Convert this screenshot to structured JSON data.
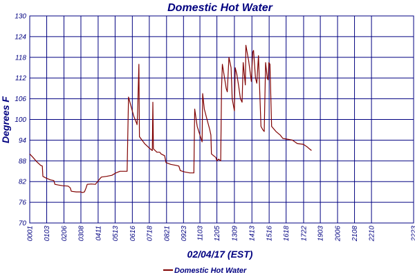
{
  "chart_data": {
    "type": "line",
    "title": "Domestic Hot Water",
    "xlabel": "02/04/17 (EST)",
    "ylabel": "Degrees F",
    "ylim": [
      70,
      130
    ],
    "yticks": [
      70,
      76,
      82,
      88,
      94,
      100,
      106,
      112,
      118,
      124,
      130
    ],
    "xlim": [
      0,
      1403
    ],
    "xticks": [
      {
        "label": "0001",
        "t": 0
      },
      {
        "label": "0103",
        "t": 62
      },
      {
        "label": "0206",
        "t": 125
      },
      {
        "label": "0308",
        "t": 187
      },
      {
        "label": "0411",
        "t": 250
      },
      {
        "label": "0513",
        "t": 312
      },
      {
        "label": "0616",
        "t": 375
      },
      {
        "label": "0718",
        "t": 437
      },
      {
        "label": "0821",
        "t": 500
      },
      {
        "label": "0923",
        "t": 562
      },
      {
        "label": "1103",
        "t": 622
      },
      {
        "label": "1205",
        "t": 684
      },
      {
        "label": "1309",
        "t": 748
      },
      {
        "label": "1413",
        "t": 812
      },
      {
        "label": "1516",
        "t": 875
      },
      {
        "label": "1618",
        "t": 937
      },
      {
        "label": "1722",
        "t": 1001
      },
      {
        "label": "1903",
        "t": 1062
      },
      {
        "label": "2006",
        "t": 1125
      },
      {
        "label": "2108",
        "t": 1187
      },
      {
        "label": "2210",
        "t": 1249
      },
      {
        "label": "2223",
        "t": 1403
      }
    ],
    "grid": true,
    "legend_position": "bottom-left",
    "series": [
      {
        "name": "Domestic Hot Water",
        "color": "#800000",
        "points": [
          [
            0,
            90
          ],
          [
            12,
            89
          ],
          [
            25,
            87.8
          ],
          [
            40,
            86.7
          ],
          [
            46,
            86.5
          ],
          [
            48,
            83.5
          ],
          [
            60,
            83
          ],
          [
            75,
            82.5
          ],
          [
            88,
            82.3
          ],
          [
            92,
            81.2
          ],
          [
            105,
            81
          ],
          [
            120,
            80.8
          ],
          [
            140,
            80.7
          ],
          [
            148,
            80.2
          ],
          [
            152,
            79.2
          ],
          [
            170,
            79
          ],
          [
            186,
            79
          ],
          [
            193,
            78.8
          ],
          [
            200,
            79
          ],
          [
            206,
            80.2
          ],
          [
            210,
            81.2
          ],
          [
            225,
            81.3
          ],
          [
            240,
            81.2
          ],
          [
            250,
            82.2
          ],
          [
            256,
            82.8
          ],
          [
            262,
            83.3
          ],
          [
            280,
            83.5
          ],
          [
            300,
            83.8
          ],
          [
            315,
            84.5
          ],
          [
            330,
            85
          ],
          [
            345,
            85
          ],
          [
            356,
            85
          ],
          [
            361,
            106.5
          ],
          [
            380,
            101
          ],
          [
            390,
            99
          ],
          [
            392,
            98.5
          ],
          [
            394,
            101.5
          ],
          [
            399,
            116
          ],
          [
            401,
            95
          ],
          [
            420,
            93
          ],
          [
            440,
            91.5
          ],
          [
            448,
            91
          ],
          [
            450,
            105
          ],
          [
            452,
            91.5
          ],
          [
            465,
            90.5
          ],
          [
            475,
            90.5
          ],
          [
            480,
            90
          ],
          [
            493,
            89.5
          ],
          [
            498,
            87.5
          ],
          [
            515,
            87
          ],
          [
            535,
            86.7
          ],
          [
            545,
            86.5
          ],
          [
            550,
            85.2
          ],
          [
            565,
            84.8
          ],
          [
            585,
            84.5
          ],
          [
            600,
            84.5
          ],
          [
            603,
            103
          ],
          [
            612,
            98
          ],
          [
            624,
            95
          ],
          [
            630,
            93.5
          ],
          [
            632,
            107.5
          ],
          [
            638,
            103
          ],
          [
            648,
            100
          ],
          [
            658,
            97
          ],
          [
            662,
            95.5
          ],
          [
            664,
            90
          ],
          [
            672,
            89.5
          ],
          [
            680,
            89
          ],
          [
            684,
            88
          ],
          [
            690,
            88.5
          ],
          [
            698,
            88
          ],
          [
            701,
            109
          ],
          [
            704,
            116
          ],
          [
            710,
            113
          ],
          [
            718,
            109
          ],
          [
            722,
            108
          ],
          [
            728,
            118
          ],
          [
            736,
            115
          ],
          [
            740,
            106
          ],
          [
            748,
            102.5
          ],
          [
            751,
            115
          ],
          [
            757,
            113
          ],
          [
            764,
            109.5
          ],
          [
            770,
            106
          ],
          [
            776,
            105
          ],
          [
            780,
            116.5
          ],
          [
            788,
            110
          ],
          [
            790,
            121.5
          ],
          [
            800,
            117
          ],
          [
            810,
            111
          ],
          [
            815,
            119.5
          ],
          [
            818,
            120
          ],
          [
            825,
            112
          ],
          [
            830,
            110.5
          ],
          [
            836,
            118.5
          ],
          [
            845,
            98
          ],
          [
            852,
            97
          ],
          [
            857,
            96.5
          ],
          [
            862,
            116.5
          ],
          [
            868,
            112
          ],
          [
            871,
            111.5
          ],
          [
            874,
            116.5
          ],
          [
            878,
            116
          ],
          [
            884,
            98
          ],
          [
            900,
            96.5
          ],
          [
            915,
            95.5
          ],
          [
            925,
            94.5
          ],
          [
            960,
            94
          ],
          [
            978,
            93
          ],
          [
            1000,
            92.8
          ],
          [
            1015,
            92
          ],
          [
            1022,
            91.5
          ],
          [
            1030,
            91
          ]
        ]
      }
    ]
  }
}
